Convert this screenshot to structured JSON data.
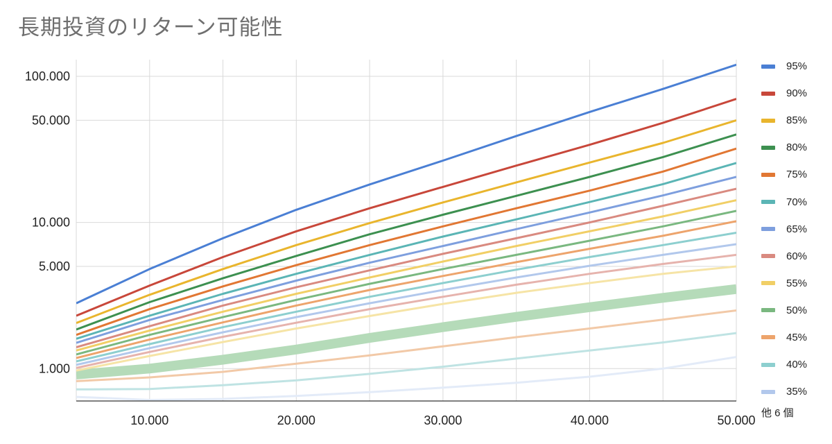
{
  "chart_data": {
    "type": "line",
    "title": "長期投資のリターン可能性",
    "x_scale": "linear",
    "y_scale": "log",
    "xlim": [
      5000,
      50000
    ],
    "ylim": [
      600,
      130000
    ],
    "x_ticks": [
      10000,
      20000,
      30000,
      40000,
      50000
    ],
    "x_tick_labels": [
      "10.000",
      "20.000",
      "30.000",
      "40.000",
      "50.000"
    ],
    "y_ticks": [
      1000,
      5000,
      10000,
      50000,
      100000
    ],
    "y_tick_labels": [
      "1.000",
      "5.000",
      "10.000",
      "50.000",
      "100.000"
    ],
    "grid": true,
    "legend_position": "right",
    "legend_more_label": "他 6 個",
    "x": [
      5000,
      10000,
      15000,
      20000,
      25000,
      30000,
      35000,
      40000,
      45000,
      50000
    ],
    "series": [
      {
        "name": "95%",
        "color": "#4a7fd4",
        "values": [
          2800,
          4800,
          7800,
          12200,
          18200,
          26500,
          39000,
          57000,
          82000,
          120000
        ]
      },
      {
        "name": "90%",
        "color": "#c8473a",
        "values": [
          2300,
          3700,
          5800,
          8700,
          12500,
          17500,
          24500,
          34000,
          48000,
          70000
        ]
      },
      {
        "name": "85%",
        "color": "#e9b52d",
        "values": [
          2050,
          3200,
          4800,
          7000,
          9900,
          13700,
          18800,
          25700,
          35000,
          50000
        ]
      },
      {
        "name": "80%",
        "color": "#3d9050",
        "values": [
          1850,
          2850,
          4150,
          5900,
          8300,
          11300,
          15200,
          20500,
          28000,
          40000
        ]
      },
      {
        "name": "75%",
        "color": "#e17733",
        "values": [
          1700,
          2550,
          3650,
          5100,
          7000,
          9400,
          12500,
          16500,
          22300,
          32000
        ]
      },
      {
        "name": "70%",
        "color": "#5bb5b5",
        "values": [
          1600,
          2300,
          3250,
          4450,
          6000,
          8000,
          10500,
          13800,
          18300,
          25500
        ]
      },
      {
        "name": "65%",
        "color": "#7e9fde",
        "values": [
          1500,
          2150,
          2950,
          4000,
          5300,
          6900,
          9000,
          11700,
          15300,
          20500
        ]
      },
      {
        "name": "60%",
        "color": "#d98a80",
        "values": [
          1400,
          1950,
          2700,
          3600,
          4700,
          6100,
          7800,
          10000,
          13000,
          17000
        ]
      },
      {
        "name": "55%",
        "color": "#f1cf66",
        "values": [
          1330,
          1820,
          2450,
          3250,
          4200,
          5400,
          6900,
          8700,
          11000,
          14200
        ]
      },
      {
        "name": "50%",
        "color": "#7ab880",
        "values": [
          1250,
          1700,
          2250,
          2950,
          3800,
          4800,
          6000,
          7500,
          9400,
          12000
        ]
      },
      {
        "name": "45%",
        "color": "#eda46c",
        "values": [
          1180,
          1580,
          2070,
          2700,
          3450,
          4300,
          5350,
          6600,
          8100,
          10200
        ]
      },
      {
        "name": "40%",
        "color": "#8dcfcf",
        "values": [
          1120,
          1470,
          1920,
          2450,
          3100,
          3850,
          4750,
          5800,
          7000,
          8500
        ]
      },
      {
        "name": "35%",
        "color": "#b2c8ec",
        "values": [
          1060,
          1380,
          1770,
          2250,
          2800,
          3450,
          4200,
          5050,
          6000,
          7100
        ]
      },
      {
        "name": "",
        "color": "#e6b3ad",
        "values": [
          1010,
          1300,
          1650,
          2060,
          2550,
          3100,
          3750,
          4450,
          5200,
          6000
        ]
      },
      {
        "name": "",
        "color": "#f6e4a6",
        "values": [
          970,
          1220,
          1520,
          1880,
          2290,
          2770,
          3300,
          3850,
          4450,
          5000
        ]
      },
      {
        "name": "",
        "color": "#b5dbb9",
        "values": [
          910,
          1000,
          1150,
          1350,
          1620,
          1920,
          2260,
          2630,
          3050,
          3500
        ]
      },
      {
        "name": "",
        "color": "#f2c9a7",
        "values": [
          820,
          870,
          950,
          1080,
          1230,
          1420,
          1640,
          1880,
          2160,
          2500
        ]
      },
      {
        "name": "",
        "color": "#bfe3e3",
        "values": [
          720,
          725,
          770,
          830,
          920,
          1030,
          1170,
          1330,
          1510,
          1750
        ]
      },
      {
        "name": "",
        "color": "#e3ebf8",
        "values": [
          640,
          610,
          620,
          650,
          690,
          740,
          800,
          880,
          1000,
          1200
        ]
      }
    ]
  }
}
